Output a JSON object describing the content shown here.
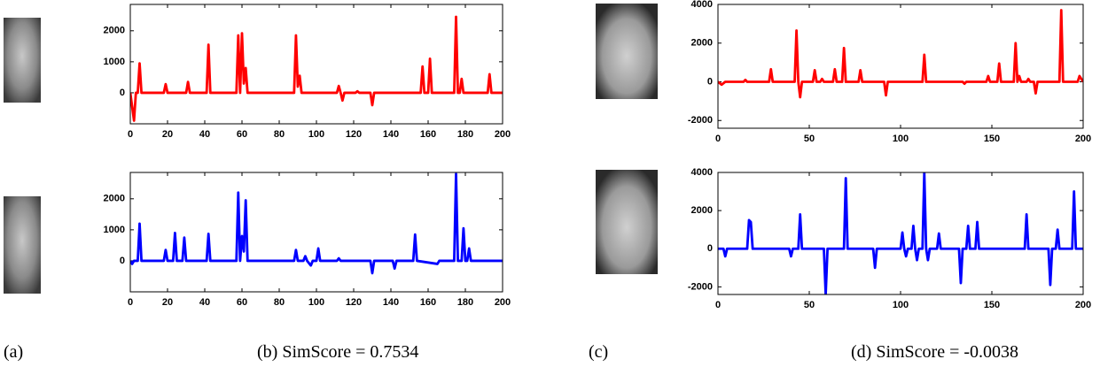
{
  "chart_data": [
    {
      "type": "line",
      "xlim": [
        0,
        200
      ],
      "xticks": [
        0,
        20,
        40,
        60,
        80,
        100,
        120,
        140,
        160,
        180,
        200
      ],
      "ylim": [
        -1000,
        2850
      ],
      "yticks": [
        0,
        1000,
        2000
      ],
      "x": [
        0,
        2,
        3,
        4,
        5,
        6,
        18,
        19,
        20,
        30,
        31,
        32,
        41,
        42,
        43,
        57,
        58,
        59,
        60,
        61,
        62,
        63,
        88,
        89,
        90,
        91,
        92,
        111,
        112,
        113,
        114,
        115,
        121,
        122,
        123,
        129,
        130,
        131,
        156,
        157,
        158,
        160,
        161,
        162,
        174,
        175,
        176,
        177,
        178,
        179,
        192,
        193,
        194,
        200
      ],
      "series": [
        {
          "color": "#ff0000",
          "values": [
            0,
            -900,
            0,
            0,
            950,
            0,
            0,
            280,
            0,
            0,
            350,
            0,
            0,
            1550,
            0,
            0,
            1850,
            0,
            1920,
            300,
            800,
            0,
            0,
            1850,
            200,
            550,
            0,
            0,
            220,
            0,
            -250,
            0,
            0,
            50,
            0,
            0,
            -400,
            0,
            0,
            850,
            0,
            0,
            1100,
            0,
            0,
            2450,
            0,
            0,
            450,
            0,
            0,
            600,
            0,
            0
          ]
        }
      ]
    },
    {
      "type": "line",
      "xlim": [
        0,
        200
      ],
      "xticks": [
        0,
        20,
        40,
        60,
        80,
        100,
        120,
        140,
        160,
        180,
        200
      ],
      "ylim": [
        -1000,
        2850
      ],
      "yticks": [
        0,
        1000,
        2000
      ],
      "x": [
        0,
        1,
        2,
        4,
        5,
        6,
        18,
        19,
        20,
        23,
        24,
        25,
        28,
        29,
        30,
        41,
        42,
        43,
        57,
        58,
        59,
        60,
        61,
        62,
        63,
        88,
        89,
        90,
        93,
        94,
        95,
        97,
        98,
        100,
        101,
        102,
        111,
        112,
        113,
        129,
        130,
        131,
        141,
        142,
        143,
        152,
        153,
        154,
        165,
        166,
        174,
        175,
        176,
        178,
        179,
        180,
        181,
        182,
        183,
        200
      ],
      "series": [
        {
          "color": "#0000ff",
          "values": [
            0,
            -100,
            0,
            0,
            1200,
            0,
            0,
            350,
            0,
            0,
            900,
            0,
            0,
            750,
            0,
            0,
            870,
            0,
            0,
            2200,
            0,
            800,
            300,
            1950,
            0,
            0,
            350,
            0,
            0,
            150,
            0,
            -150,
            0,
            0,
            400,
            0,
            0,
            80,
            0,
            0,
            -400,
            0,
            0,
            -250,
            0,
            0,
            850,
            0,
            -100,
            0,
            0,
            2800,
            0,
            0,
            1050,
            0,
            0,
            400,
            0,
            0
          ]
        }
      ]
    },
    {
      "type": "line",
      "xlim": [
        0,
        200
      ],
      "xticks": [
        0,
        50,
        100,
        150,
        200
      ],
      "ylim": [
        -2400,
        4000
      ],
      "yticks": [
        -2000,
        0,
        2000,
        4000
      ],
      "x": [
        0,
        2,
        4,
        14,
        15,
        16,
        28,
        29,
        30,
        42,
        43,
        44,
        45,
        46,
        52,
        53,
        54,
        56,
        57,
        58,
        63,
        64,
        65,
        68,
        69,
        70,
        77,
        78,
        79,
        91,
        92,
        93,
        112,
        113,
        114,
        134,
        135,
        136,
        147,
        148,
        149,
        153,
        154,
        155,
        162,
        163,
        164,
        165,
        166,
        169,
        170,
        171,
        173,
        174,
        175,
        187,
        188,
        189,
        197,
        198,
        200
      ],
      "series": [
        {
          "color": "#ff0000",
          "values": [
            0,
            -150,
            0,
            0,
            100,
            0,
            0,
            650,
            0,
            0,
            2650,
            0,
            -800,
            0,
            0,
            600,
            0,
            0,
            150,
            0,
            0,
            650,
            0,
            0,
            1750,
            0,
            0,
            600,
            0,
            0,
            -700,
            0,
            0,
            1400,
            0,
            0,
            -100,
            0,
            0,
            300,
            0,
            0,
            950,
            0,
            0,
            2000,
            0,
            300,
            0,
            0,
            150,
            0,
            0,
            -600,
            0,
            0,
            3700,
            0,
            0,
            300,
            0
          ]
        }
      ]
    },
    {
      "type": "line",
      "xlim": [
        0,
        200
      ],
      "xticks": [
        0,
        50,
        100,
        150,
        200
      ],
      "ylim": [
        -2400,
        4000
      ],
      "yticks": [
        -2000,
        0,
        2000,
        4000
      ],
      "x": [
        0,
        3,
        4,
        5,
        16,
        17,
        18,
        19,
        39,
        40,
        41,
        44,
        45,
        46,
        58,
        59,
        60,
        69,
        70,
        71,
        85,
        86,
        87,
        100,
        101,
        102,
        103,
        104,
        106,
        107,
        108,
        109,
        110,
        112,
        113,
        114,
        115,
        116,
        120,
        121,
        122,
        132,
        133,
        134,
        136,
        137,
        138,
        141,
        142,
        143,
        168,
        169,
        170,
        181,
        182,
        183,
        185,
        186,
        187,
        194,
        195,
        196,
        200
      ],
      "series": [
        {
          "color": "#0000ff",
          "values": [
            0,
            0,
            -400,
            0,
            0,
            1500,
            1400,
            0,
            0,
            -400,
            0,
            0,
            1800,
            0,
            0,
            -2400,
            0,
            0,
            3700,
            0,
            0,
            -1000,
            0,
            0,
            850,
            0,
            -400,
            0,
            0,
            1200,
            0,
            -600,
            0,
            0,
            4000,
            0,
            -600,
            0,
            0,
            800,
            0,
            0,
            -1800,
            0,
            0,
            1200,
            0,
            0,
            1400,
            0,
            0,
            1800,
            0,
            0,
            -1900,
            0,
            0,
            1000,
            0,
            0,
            3000,
            0,
            0
          ]
        }
      ]
    }
  ],
  "captions": [
    "(a)",
    "(b) SimScore = 0.7534",
    "(c)",
    "(d) SimScore = -0.0038"
  ]
}
